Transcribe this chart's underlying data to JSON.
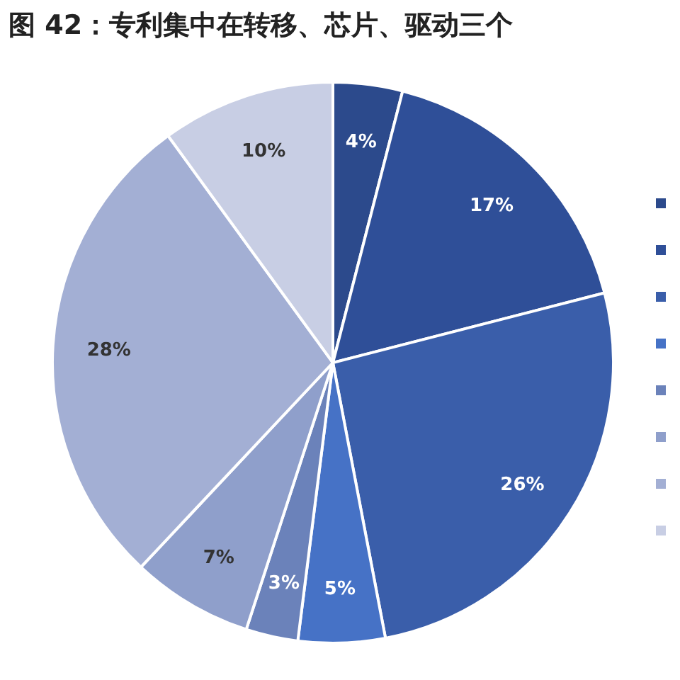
{
  "chart_data": {
    "type": "pie",
    "title": "图 42：专利集中在转移、芯片、驱动三个",
    "categories": [
      null,
      null,
      null,
      null,
      null,
      null,
      null,
      null
    ],
    "values": [
      4,
      17,
      26,
      5,
      3,
      7,
      28,
      10
    ],
    "colors": [
      "#2c4a8c",
      "#2f4f98",
      "#3a5eaa",
      "#4672c6",
      "#6b82ba",
      "#8f9fcb",
      "#a3afd4",
      "#c8cee4"
    ],
    "value_labels": [
      "4%",
      "17%",
      "26%",
      "5%",
      "3%",
      "7%",
      "28%",
      "10%"
    ]
  }
}
